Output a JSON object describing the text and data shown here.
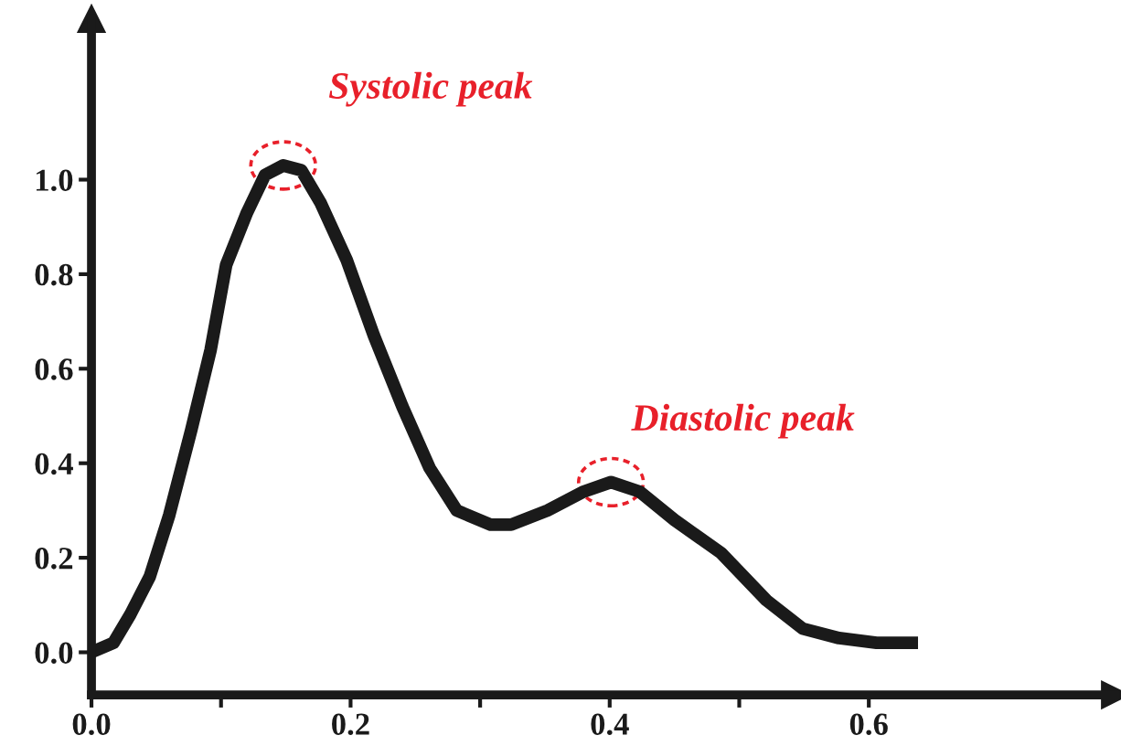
{
  "chart_data": {
    "type": "line",
    "x": [
      0.0,
      0.017,
      0.03,
      0.045,
      0.06,
      0.077,
      0.092,
      0.104,
      0.12,
      0.134,
      0.148,
      0.162,
      0.177,
      0.197,
      0.218,
      0.24,
      0.261,
      0.282,
      0.308,
      0.324,
      0.352,
      0.38,
      0.401,
      0.423,
      0.45,
      0.486,
      0.521,
      0.549,
      0.577,
      0.606,
      0.638
    ],
    "series": [
      {
        "color": "#1a1a1a",
        "values": [
          0.0,
          0.02,
          0.08,
          0.16,
          0.29,
          0.47,
          0.64,
          0.82,
          0.93,
          1.01,
          1.03,
          1.02,
          0.95,
          0.83,
          0.67,
          0.52,
          0.39,
          0.3,
          0.27,
          0.27,
          0.3,
          0.34,
          0.36,
          0.34,
          0.28,
          0.21,
          0.11,
          0.05,
          0.03,
          0.02,
          0.02
        ]
      }
    ],
    "xlim": [
      0,
      0.79
    ],
    "ylim": [
      -0.09,
      1.34
    ],
    "xticks": [
      {
        "value": 0,
        "label": "0.0"
      },
      {
        "value": 0.1,
        "label": null
      },
      0.2,
      {
        "value": 0.3,
        "label": null
      },
      0.4,
      {
        "value": 0.5,
        "label": null
      },
      0.6
    ],
    "yticks": [
      {
        "value": 0,
        "label": "0.0"
      },
      0.2,
      0.4,
      0.6,
      0.8,
      {
        "value": 1,
        "label": "1.0"
      }
    ],
    "annotations": [
      {
        "text": "Systolic peak",
        "x": 0.148,
        "y": 1.03
      },
      {
        "text": "Diastolic peak",
        "x": 0.401,
        "y": 0.36
      }
    ],
    "grid": false,
    "legend": false,
    "marker": "none",
    "line_style": "solid"
  }
}
